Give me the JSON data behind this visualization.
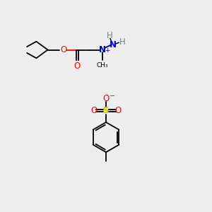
{
  "background_color": "#eeeeee",
  "fig_width": 3.0,
  "fig_height": 3.0,
  "dpi": 100,
  "colors": {
    "bond": "#000000",
    "O": "#ff0000",
    "N": "#0000cd",
    "H": "#708090",
    "S": "#cccc00",
    "O_neg": "#ff0000"
  }
}
